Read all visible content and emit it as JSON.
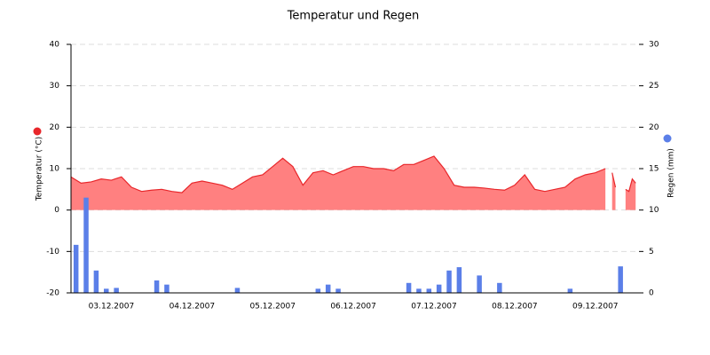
{
  "chart_data": {
    "type": "combo",
    "title": "Temperatur und Regen",
    "ylabel": "Temperatur (°C)",
    "y2label": "Regen (mm)",
    "xlim": [
      0,
      169
    ],
    "xticks": [
      {
        "value": 12,
        "label": "03.12.2007"
      },
      {
        "value": 36,
        "label": "04.12.2007"
      },
      {
        "value": 60,
        "label": "05.12.2007"
      },
      {
        "value": 84,
        "label": "06.12.2007"
      },
      {
        "value": 108,
        "label": "07.12.2007"
      },
      {
        "value": 132,
        "label": "08.12.2007"
      },
      {
        "value": 156,
        "label": "09.12.2007"
      }
    ],
    "ylim": [
      -20,
      40
    ],
    "yticks": [
      -20,
      -10,
      0,
      10,
      20,
      30,
      40
    ],
    "y2lim": [
      0,
      30
    ],
    "y2ticks": [
      0,
      5,
      10,
      15,
      20,
      25,
      30
    ],
    "grid": true,
    "series": [
      {
        "name": "Temperatur (°C)",
        "type": "area",
        "color": "#e8262a",
        "fill": "#ff8080",
        "x": [
          0,
          3,
          6,
          9,
          12,
          15,
          18,
          21,
          24,
          27,
          30,
          33,
          36,
          39,
          42,
          45,
          48,
          51,
          54,
          57,
          60,
          63,
          66,
          69,
          72,
          75,
          78,
          81,
          84,
          87,
          90,
          93,
          96,
          99,
          102,
          105,
          108,
          111,
          114,
          117,
          120,
          123,
          126,
          129,
          132,
          135,
          138,
          141,
          144,
          147,
          150,
          153,
          156,
          159,
          160,
          161,
          162,
          163,
          165,
          166,
          167,
          168
        ],
        "values": [
          8,
          6.5,
          6.8,
          7.5,
          7.2,
          8,
          5.5,
          4.5,
          4.8,
          5,
          4.5,
          4.2,
          6.5,
          7,
          6.5,
          6,
          5,
          6.5,
          8,
          8.5,
          10.5,
          12.5,
          10.5,
          6,
          9,
          9.5,
          8.5,
          9.5,
          10.5,
          10.5,
          10,
          10,
          9.5,
          11,
          11,
          12,
          13,
          10,
          6,
          5.5,
          5.5,
          5.3,
          5,
          4.8,
          6,
          8.5,
          5,
          4.5,
          5,
          5.5,
          7.5,
          8.5,
          9,
          10,
          null,
          9,
          5.5,
          null,
          5,
          4.5,
          7.5,
          6.5
        ]
      },
      {
        "name": "Regen (mm)",
        "type": "bar",
        "axis": "y2",
        "color": "#5b7fe8",
        "x": [
          1.5,
          4.5,
          7.5,
          10.5,
          13.5,
          25.5,
          28.5,
          49.5,
          73.5,
          76.5,
          79.5,
          100.5,
          103.5,
          106.5,
          109.5,
          112.5,
          115.5,
          121.5,
          127.5,
          148.5,
          163.5
        ],
        "values": [
          5.8,
          11.5,
          2.7,
          0.5,
          0.6,
          1.5,
          1.0,
          0.6,
          0.5,
          1.0,
          0.5,
          1.2,
          0.5,
          0.5,
          1.0,
          2.7,
          3.1,
          2.1,
          1.2,
          0.5,
          3.2
        ]
      }
    ]
  }
}
